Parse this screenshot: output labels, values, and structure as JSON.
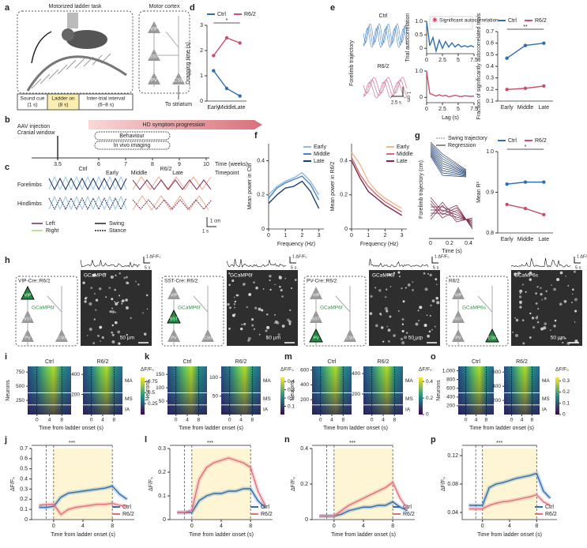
{
  "figure": {
    "labels": [
      "a",
      "b",
      "c",
      "d",
      "e",
      "f",
      "g",
      "h",
      "i",
      "j",
      "k",
      "l",
      "m",
      "n",
      "o",
      "p"
    ],
    "a": {
      "title": "Motorized ladder task",
      "region": "Motor cortex",
      "cells": [
        "VIP",
        "SST",
        "PV",
        "CStr"
      ],
      "output": "To striatum",
      "trial": [
        [
          "Sound cue",
          "(1 s)"
        ],
        [
          "Ladder on",
          "(8 s)"
        ],
        [
          "Inter-trial interval",
          "(6–8 s)"
        ]
      ]
    },
    "b": {
      "injection": [
        "AAV injection",
        "Cranial window"
      ],
      "progression": "HD symptom progression",
      "phases": [
        "Behaviour",
        "In vivo imaging"
      ],
      "weeks": [
        3.5,
        6,
        7,
        8,
        9,
        10
      ],
      "axis_label": "Time (weeks)",
      "timepoints": [
        "Early",
        "Middle",
        "Late"
      ],
      "timepoint_label": "Timepoint"
    },
    "c": {
      "groups": [
        "Ctrl",
        "R6/2"
      ],
      "rows": [
        "Forelimbs",
        "Hindlimbs"
      ],
      "legend": [
        "Left",
        "Right",
        "Swing",
        "Stance"
      ],
      "scale": [
        "1 cm",
        "1 s"
      ]
    },
    "e": {
      "groups": [
        "Ctrl",
        "R6/2"
      ],
      "ylabel": "Forelimb trajectory",
      "scale": [
        "2.5 s",
        "1 cm"
      ]
    },
    "g": {
      "legend": [
        "Swing trajectory",
        "Regression"
      ],
      "ylabel": "Forelimb trajectory (cm)",
      "xlabel": "Time (s)",
      "xticks": [
        0,
        0.2,
        0.4
      ]
    },
    "h": {
      "panels": [
        {
          "genotype": "VIP-Cre::R6/2",
          "indicator": "GCaMP6f"
        },
        {
          "genotype": "SST-Cre::R6/2",
          "indicator": "GCaMP6f"
        },
        {
          "genotype": "PV-Cre::R6/2",
          "indicator": "GCaMP6f"
        },
        {
          "genotype": "R6/2",
          "indicator": "GCaMP6s"
        }
      ],
      "cells": [
        "VIP",
        "SST",
        "PV",
        "CStr"
      ],
      "scalebar": "50 µm",
      "trace_scale": [
        "1 ΔF/F₀",
        "5 s"
      ]
    }
  },
  "chart_data": [
    {
      "type": "line",
      "ylabel": "Dragging time (s)",
      "categories": [
        "Early",
        "Middle",
        "Late"
      ],
      "ylim": [
        0,
        3
      ],
      "yticks": [
        0,
        1,
        2,
        3
      ],
      "legend": "top",
      "annotation": "*",
      "series": [
        {
          "name": "Ctrl",
          "color": "#2f6fae",
          "values": [
            1.2,
            0.5,
            0.2
          ]
        },
        {
          "name": "R6/2",
          "color": "#c9506a",
          "values": [
            1.8,
            2.5,
            2.3
          ]
        }
      ]
    },
    {
      "type": "line",
      "ylabel": "Trial autocorrelation",
      "legend_label": "Significant autocorrelation",
      "x": [
        0,
        0.5,
        1,
        1.5,
        2,
        2.5,
        3,
        3.5,
        4,
        4.5,
        5,
        5.5,
        6,
        6.5,
        7,
        7.5
      ],
      "xlim": [
        0,
        7.5
      ],
      "xticks": [
        0,
        2.5,
        5,
        7.5
      ],
      "ylim": [
        -0.2,
        1
      ],
      "yticks": [
        0,
        0.5,
        {
          "value": 1,
          "label": "1.0"
        }
      ],
      "series": [
        {
          "color": "#2f6fae",
          "values": [
            1,
            0.1,
            0.4,
            -0.1,
            0.3,
            0,
            0.25,
            0.05,
            0.2,
            0.05,
            0.15,
            0.05,
            0.1,
            0.05,
            0.1,
            0.05
          ]
        }
      ]
    },
    {
      "type": "line",
      "xlabel": "Lag (s)",
      "x": [
        0,
        0.5,
        1,
        1.5,
        2,
        2.5,
        3,
        3.5,
        4,
        4.5,
        5,
        5.5,
        6,
        6.5,
        7,
        7.5
      ],
      "xlim": [
        0,
        7.5
      ],
      "xticks": [
        0,
        2.5,
        5,
        7.5
      ],
      "ylim": [
        -0.2,
        1
      ],
      "yticks": [
        0,
        {
          "value": 1,
          "label": "1.0"
        }
      ],
      "series": [
        {
          "color": "#c9506a",
          "values": [
            1,
            0.15,
            0.1,
            0.05,
            0.1,
            0.05,
            0.08,
            0.02,
            0.05,
            0.08,
            0.05,
            0.03,
            0.06,
            0.05,
            0.04,
            0.05
          ]
        }
      ]
    },
    {
      "type": "line",
      "ylabel": "Fraction of significantly autocorrelated trials",
      "categories": [
        "Early",
        "Middle",
        "Late"
      ],
      "ylim": [
        0.1,
        0.7
      ],
      "yticks": [
        0.1,
        0.2,
        0.3,
        0.4,
        0.5,
        0.6,
        0.7
      ],
      "legend": "top",
      "annotation": "**",
      "series": [
        {
          "name": "Ctrl",
          "color": "#2f6fae",
          "values": [
            0.47,
            0.58,
            0.6
          ]
        },
        {
          "name": "R6/2",
          "color": "#c9506a",
          "values": [
            0.2,
            0.21,
            0.23
          ]
        }
      ]
    },
    {
      "type": "line",
      "ylabel": "Mean power in Ctrl",
      "xlabel": "Frequency (Hz)",
      "x": [
        0,
        0.5,
        1,
        1.5,
        2,
        2.5,
        3
      ],
      "xlim": [
        0,
        3.3
      ],
      "xticks": [
        0,
        1,
        2,
        3
      ],
      "ylim": [
        0,
        0.5
      ],
      "yticks": [
        0,
        0.2,
        0.4
      ],
      "legend": "inside",
      "series": [
        {
          "name": "Early",
          "color": "#8fb9dd",
          "values": [
            0.2,
            0.25,
            0.28,
            0.3,
            0.33,
            0.28,
            0.2
          ]
        },
        {
          "name": "Middle",
          "color": "#4a86bf",
          "values": [
            0.18,
            0.24,
            0.27,
            0.29,
            0.31,
            0.26,
            0.17
          ]
        },
        {
          "name": "Late",
          "color": "#1d3f70",
          "values": [
            0.15,
            0.2,
            0.24,
            0.25,
            0.28,
            0.22,
            0.12
          ]
        }
      ]
    },
    {
      "type": "line",
      "ylabel": "Mean power in R6/2",
      "xlabel": "Frequency (Hz)",
      "x": [
        0,
        0.5,
        1,
        1.5,
        2,
        2.5,
        3
      ],
      "xlim": [
        0,
        3.3
      ],
      "xticks": [
        0,
        1,
        2,
        3
      ],
      "ylim": [
        0,
        0.5
      ],
      "yticks": [
        0,
        0.2,
        0.4
      ],
      "legend": "inside",
      "series": [
        {
          "name": "Early",
          "color": "#f0b98a",
          "values": [
            0.45,
            0.38,
            0.28,
            0.22,
            0.18,
            0.15,
            0.12
          ]
        },
        {
          "name": "Middle",
          "color": "#d76a78",
          "values": [
            0.42,
            0.32,
            0.25,
            0.2,
            0.16,
            0.13,
            0.1
          ]
        },
        {
          "name": "Late",
          "color": "#7a2a4a",
          "values": [
            0.4,
            0.3,
            0.22,
            0.18,
            0.14,
            0.11,
            0.08
          ]
        }
      ]
    },
    {
      "type": "line",
      "ylabel": "Mean R²",
      "categories": [
        "Early",
        "Middle",
        "Late"
      ],
      "ylim": [
        0.8,
        1
      ],
      "yticks": [
        0.8,
        0.9,
        {
          "value": 1,
          "label": "1.0"
        }
      ],
      "legend": "top",
      "annotation": "*",
      "series": [
        {
          "name": "Ctrl",
          "color": "#2f6fae",
          "values": [
            0.92,
            0.925,
            0.925
          ]
        },
        {
          "name": "R6/2",
          "color": "#c9506a",
          "values": [
            0.87,
            0.86,
            0.845
          ]
        }
      ]
    },
    {
      "type": "line",
      "ylabel": "ΔF/F₀",
      "xlabel": "Time from ladder onset (s)",
      "x": [
        -2,
        -1,
        0,
        1,
        2,
        3,
        4,
        5,
        6,
        7,
        8,
        9,
        10
      ],
      "xlim": [
        -3,
        11
      ],
      "xticks": [
        0,
        4,
        8
      ],
      "events": [
        -1,
        0,
        8
      ],
      "shade": [
        0,
        8
      ],
      "annotation": "***",
      "legend": "bottom",
      "ylim": [
        0,
        0.7
      ],
      "yticks": [
        0,
        0.1,
        0.2,
        0.3,
        0.4,
        0.5,
        0.6,
        0.7
      ],
      "series": [
        {
          "name": "Ctrl",
          "color": "#2f6fae",
          "values": [
            0.12,
            0.12,
            0.13,
            0.22,
            0.26,
            0.27,
            0.28,
            0.29,
            0.3,
            0.31,
            0.33,
            0.25,
            0.2
          ]
        },
        {
          "name": "R6/2",
          "color": "#e0707f",
          "values": [
            0.14,
            0.15,
            0.15,
            0.05,
            0.1,
            0.12,
            0.13,
            0.14,
            0.15,
            0.15,
            0.16,
            0.14,
            0.13
          ]
        }
      ]
    },
    {
      "type": "line",
      "ylabel": "ΔF/F₀",
      "xlabel": "Time from ladder onset (s)",
      "x": [
        -2,
        -1,
        0,
        1,
        2,
        3,
        4,
        5,
        6,
        7,
        8,
        9,
        10
      ],
      "xlim": [
        -3,
        11
      ],
      "xticks": [
        0,
        4,
        8
      ],
      "events": [
        -1,
        0,
        8
      ],
      "shade": [
        0,
        8
      ],
      "annotation": "***",
      "legend": "bottom",
      "ylim": [
        0,
        0.3
      ],
      "yticks": [
        0,
        0.1,
        0.2,
        0.3
      ],
      "series": [
        {
          "name": "Ctrl",
          "color": "#2f6fae",
          "values": [
            0.03,
            0.03,
            0.03,
            0.08,
            0.1,
            0.11,
            0.11,
            0.12,
            0.12,
            0.13,
            0.13,
            0.08,
            0.05
          ]
        },
        {
          "name": "R6/2",
          "color": "#e0707f",
          "values": [
            0.03,
            0.03,
            0.04,
            0.17,
            0.22,
            0.24,
            0.25,
            0.26,
            0.25,
            0.24,
            0.22,
            0.12,
            0.06
          ]
        }
      ]
    },
    {
      "type": "line",
      "ylabel": "ΔF/F₀",
      "xlabel": "Time from ladder onset (s)",
      "x": [
        -2,
        -1,
        0,
        1,
        2,
        3,
        4,
        5,
        6,
        7,
        8,
        9,
        10
      ],
      "xlim": [
        -3,
        11
      ],
      "xticks": [
        0,
        4,
        8
      ],
      "events": [
        -1,
        0,
        8
      ],
      "shade": [
        0,
        8
      ],
      "annotation": "***",
      "legend": "bottom",
      "ylim": [
        0,
        0.4
      ],
      "yticks": [
        0,
        0.2,
        0.4
      ],
      "series": [
        {
          "name": "Ctrl",
          "color": "#2f6fae",
          "values": [
            0.02,
            0.02,
            0.02,
            0.03,
            0.05,
            0.06,
            0.07,
            0.07,
            0.08,
            0.08,
            0.1,
            0.07,
            0.05
          ]
        },
        {
          "name": "R6/2",
          "color": "#e0707f",
          "values": [
            0.02,
            0.02,
            0.02,
            0.05,
            0.08,
            0.1,
            0.12,
            0.14,
            0.16,
            0.18,
            0.21,
            0.12,
            0.06
          ]
        }
      ]
    },
    {
      "type": "line",
      "ylabel": "ΔF/F₀",
      "xlabel": "Time from ladder onset (s)",
      "x": [
        -2,
        -1,
        0,
        1,
        2,
        3,
        4,
        5,
        6,
        7,
        8,
        9,
        10
      ],
      "xlim": [
        -3,
        11
      ],
      "xticks": [
        0,
        4,
        8
      ],
      "events": [
        -1,
        0,
        8
      ],
      "shade": [
        0,
        8
      ],
      "annotation": "***",
      "legend": "bottom",
      "ylim": [
        0.03,
        0.13
      ],
      "yticks": [
        0.04,
        0.08,
        0.12
      ],
      "series": [
        {
          "name": "Ctrl",
          "color": "#2f6fae",
          "values": [
            0.05,
            0.05,
            0.05,
            0.075,
            0.08,
            0.082,
            0.085,
            0.088,
            0.09,
            0.092,
            0.095,
            0.07,
            0.06
          ]
        },
        {
          "name": "R6/2",
          "color": "#e0707f",
          "values": [
            0.045,
            0.045,
            0.045,
            0.05,
            0.053,
            0.055,
            0.056,
            0.058,
            0.06,
            0.062,
            0.065,
            0.055,
            0.05
          ]
        }
      ]
    },
    {
      "type": "heatmap",
      "title": "Ctrl",
      "ylabel": "Neurons",
      "xlabel": "Time from ladder onset (s)",
      "xlim": [
        -3,
        11
      ],
      "xticks": [
        0,
        4,
        8
      ],
      "events": [
        0,
        8
      ],
      "ylim": [
        0,
        850
      ],
      "yticks": [
        250,
        500,
        750
      ]
    },
    {
      "type": "heatmap",
      "title": "R6/2",
      "segments": [
        "MA",
        "MS",
        "IA"
      ],
      "xlim": [
        -3,
        11
      ],
      "xticks": [
        0,
        4,
        8
      ],
      "events": [
        0,
        8
      ],
      "ylim": [
        0,
        480
      ],
      "yticks": [
        200,
        400
      ]
    },
    {
      "type": "colorbar",
      "label": "ΔF/F₀",
      "ylim": [
        0,
        0.85
      ],
      "yticks": [
        0.25,
        0.5,
        0.75
      ]
    },
    {
      "type": "heatmap",
      "title": "Ctrl",
      "ylabel": "Neurons",
      "xlabel": "Time from ladder onset (s)",
      "xlim": [
        -3,
        11
      ],
      "xticks": [
        0,
        4,
        8
      ],
      "events": [
        0,
        8
      ],
      "ylim": [
        0,
        180
      ],
      "yticks": [
        50,
        100,
        150
      ]
    },
    {
      "type": "heatmap",
      "title": "R6/2",
      "segments": [
        "MA",
        "MS",
        "IA"
      ],
      "xlim": [
        -3,
        11
      ],
      "xticks": [
        0,
        4,
        8
      ],
      "events": [
        0,
        8
      ],
      "ylim": [
        0,
        130
      ],
      "yticks": [
        50,
        100
      ]
    },
    {
      "type": "colorbar",
      "label": "ΔF/F₀",
      "ylim": [
        0,
        0.45
      ],
      "yticks": [
        0.1,
        0.2,
        0.3,
        0.4
      ]
    },
    {
      "type": "heatmap",
      "title": "Ctrl",
      "ylabel": "Neurons",
      "xlabel": "Time from ladder onset (s)",
      "xlim": [
        -3,
        11
      ],
      "xticks": [
        0,
        4,
        8
      ],
      "events": [
        0,
        8
      ],
      "ylim": [
        0,
        650
      ],
      "yticks": [
        200,
        400,
        600
      ]
    },
    {
      "type": "heatmap",
      "title": "R6/2",
      "segments": [
        "MA",
        "MS",
        "IA"
      ],
      "xlim": [
        -3,
        11
      ],
      "xticks": [
        0,
        4,
        8
      ],
      "events": [
        0,
        8
      ],
      "ylim": [
        0,
        470
      ],
      "yticks": [
        200,
        400
      ]
    },
    {
      "type": "colorbar",
      "label": "ΔF/F₀",
      "ylim": [
        0,
        0.45
      ],
      "yticks": [
        0,
        0.2,
        0.4
      ]
    },
    {
      "type": "heatmap",
      "title": "Ctrl",
      "ylabel": "Neurons",
      "xlabel": "Time from ladder onset (s)",
      "xlim": [
        -3,
        11
      ],
      "xticks": [
        0,
        4,
        8
      ],
      "events": [
        0,
        8
      ],
      "ylim": [
        0,
        1100
      ],
      "yticks": [
        200,
        400,
        600,
        800,
        {
          "value": 1000,
          "label": "1,000"
        }
      ]
    },
    {
      "type": "heatmap",
      "title": "R6/2",
      "segments": [
        "MA",
        "MS",
        "IA"
      ],
      "xlim": [
        -3,
        11
      ],
      "xticks": [
        0,
        4,
        8
      ],
      "events": [
        0,
        8
      ],
      "ylim": [
        0,
        680
      ],
      "yticks": [
        200,
        400,
        600
      ]
    },
    {
      "type": "colorbar",
      "label": "ΔF/F₀",
      "ylim": [
        0,
        0.33
      ],
      "yticks": [
        0,
        0.1,
        0.2,
        0.3
      ]
    }
  ]
}
